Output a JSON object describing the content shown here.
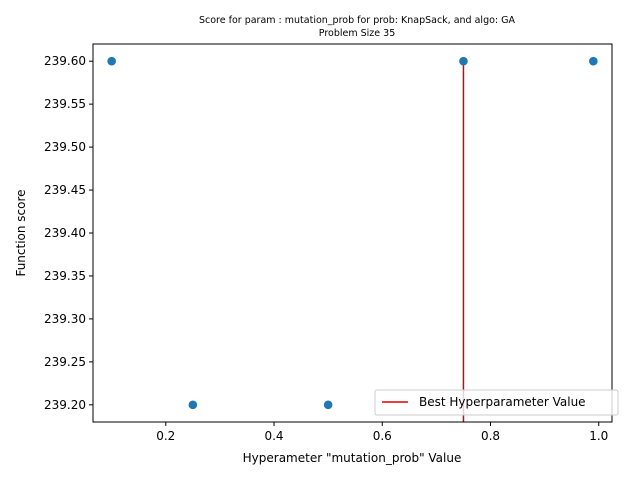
{
  "chart_data": {
    "type": "scatter",
    "title": "Score for param : mutation_prob for prob: KnapSack, and algo: GA",
    "subtitle": "Problem Size 35",
    "xlabel": "Hyperameter \"mutation_prob\" Value",
    "ylabel": "Function score",
    "xlim": [
      0.0655,
      1.0245
    ],
    "ylim": [
      239.18,
      239.62
    ],
    "xticks": [
      0.2,
      0.4,
      0.6,
      0.8,
      1.0
    ],
    "xtick_labels": [
      "0.2",
      "0.4",
      "0.6",
      "0.8",
      "1.0"
    ],
    "yticks": [
      239.2,
      239.25,
      239.3,
      239.35,
      239.4,
      239.45,
      239.5,
      239.55,
      239.6
    ],
    "ytick_labels": [
      "239.20",
      "239.25",
      "239.30",
      "239.35",
      "239.40",
      "239.45",
      "239.50",
      "239.55",
      "239.60"
    ],
    "grid": false,
    "series": [
      {
        "color": "#1f77b4",
        "x": [
          0.1,
          0.25,
          0.5,
          0.75,
          0.99
        ],
        "y": [
          239.6,
          239.2,
          239.2,
          239.6,
          239.6
        ]
      }
    ],
    "best_line": {
      "name": "Best Hyperparameter Value",
      "color": "#dd0000",
      "x": 0.75,
      "y_from": 239.18,
      "y_to": 239.6
    },
    "legend": {
      "placement": "lower-right",
      "entries": [
        "Best Hyperparameter Value"
      ]
    }
  }
}
